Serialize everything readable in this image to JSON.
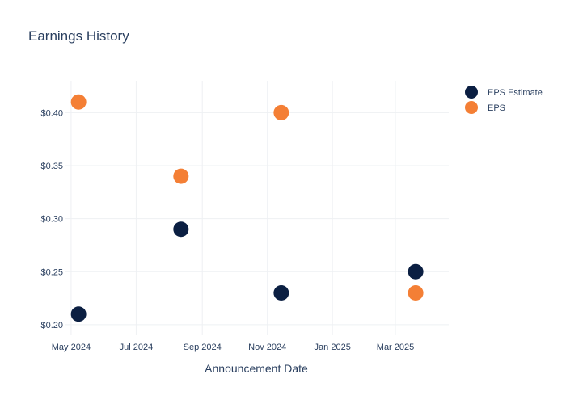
{
  "chart_data": {
    "type": "scatter",
    "title": "Earnings History",
    "xlabel": "Announcement Date",
    "ylabel": "",
    "x_ticks": [
      "May 2024",
      "Jul 2024",
      "Sep 2024",
      "Nov 2024",
      "Jan 2025",
      "Mar 2025"
    ],
    "y_ticks": [
      "$0.20",
      "$0.25",
      "$0.30",
      "$0.35",
      "$0.40"
    ],
    "ylim": [
      0.19,
      0.43
    ],
    "xlim": [
      "2024-04-25",
      "2025-04-20"
    ],
    "grid": true,
    "legend_position": "top-right",
    "series": [
      {
        "name": "EPS Estimate",
        "color": "#0b1f42",
        "points": [
          {
            "x": "2024-05-08",
            "y": 0.21
          },
          {
            "x": "2024-08-12",
            "y": 0.29
          },
          {
            "x": "2024-11-14",
            "y": 0.23
          },
          {
            "x": "2025-03-20",
            "y": 0.25
          }
        ]
      },
      {
        "name": "EPS",
        "color": "#f47f35",
        "points": [
          {
            "x": "2024-05-08",
            "y": 0.41
          },
          {
            "x": "2024-08-12",
            "y": 0.34
          },
          {
            "x": "2024-11-14",
            "y": 0.4
          },
          {
            "x": "2025-03-20",
            "y": 0.23
          }
        ]
      }
    ]
  }
}
